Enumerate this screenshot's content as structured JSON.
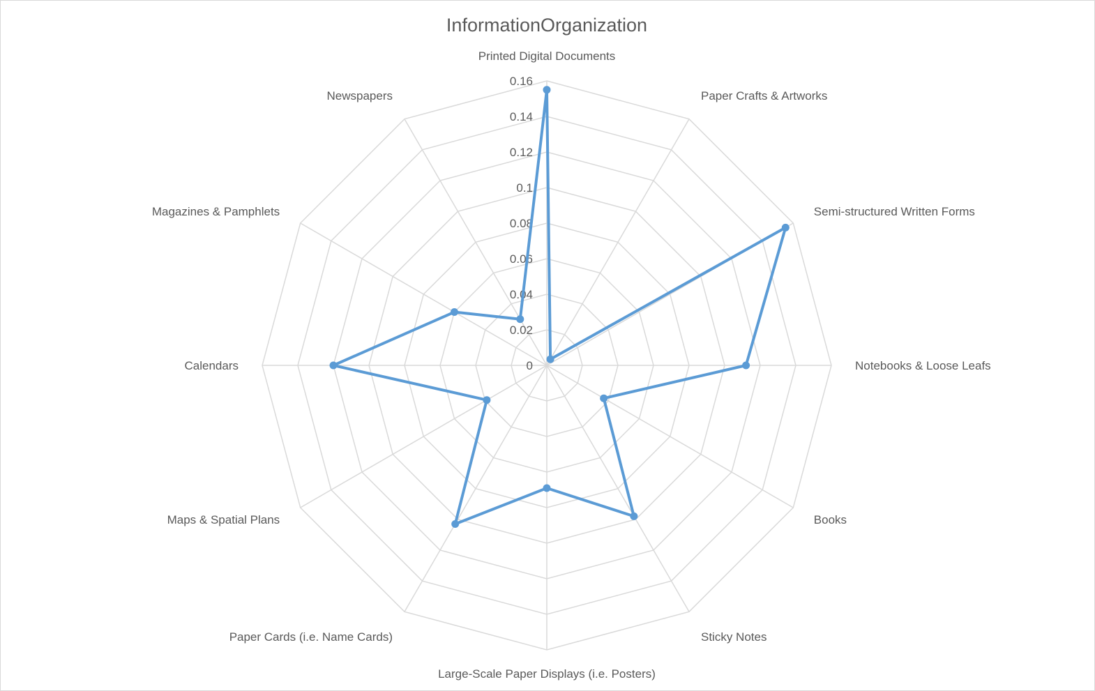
{
  "chart_data": {
    "type": "radar",
    "title": "InformationOrganization",
    "categories": [
      "Printed Digital Documents",
      "Paper Crafts & Artworks",
      "Semi-structured Written Forms",
      "Notebooks & Loose Leafs",
      "Books",
      "Sticky Notes",
      "Large-Scale Paper Displays (i.e. Posters)",
      "Paper Cards (i.e. Name Cards)",
      "Maps & Spatial Plans",
      "Calendars",
      "Magazines & Pamphlets",
      "Newspapers"
    ],
    "series": [
      {
        "values": [
          0.155,
          0.004,
          0.155,
          0.112,
          0.037,
          0.098,
          0.069,
          0.103,
          0.039,
          0.12,
          0.06,
          0.03
        ]
      }
    ],
    "ticks": [
      "0",
      "0.02",
      "0.04",
      "0.06",
      "0.08",
      "0.1",
      "0.12",
      "0.14",
      "0.16"
    ],
    "rmax": 0.16,
    "grid": true,
    "legend": "none",
    "colors": {
      "series": "#5b9bd5",
      "grid": "#d9d9d9",
      "text": "#595959"
    }
  }
}
